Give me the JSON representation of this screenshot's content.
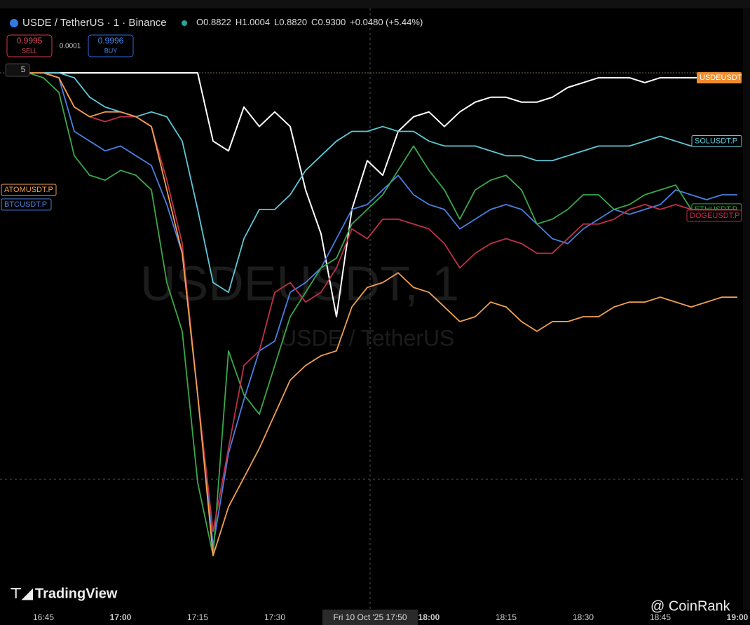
{
  "header": {
    "symbol": "USDE / TetherUS · 1 · Binance",
    "open_label": "O",
    "open": "0.8822",
    "high_label": "H",
    "high": "1.0004",
    "low_label": "L",
    "low": "0.8820",
    "close_label": "C",
    "close": "0.9300",
    "change": "+0.0480 (+5.44%)"
  },
  "trade": {
    "sell_price": "0.9995",
    "sell": "SELL",
    "spread": "0.0001",
    "buy_price": "0.9996",
    "buy": "BUY",
    "indicator_count": "5"
  },
  "watermark": {
    "line1": "USDEUSDT, 1",
    "line2": "USDE / TetherUS"
  },
  "crosshair_label": "Fri 10 Oct '25   17:50",
  "branding": {
    "logo": "TradingView",
    "credit": "@ CoinRank"
  },
  "chart_data": {
    "type": "line",
    "categories": [
      null,
      null,
      "16:45",
      null,
      null,
      null,
      null,
      "17:00",
      null,
      null,
      null,
      null,
      "17:15",
      null,
      null,
      null,
      null,
      "17:30",
      null,
      null,
      null,
      null,
      null,
      null,
      null,
      null,
      null,
      "18:00",
      null,
      null,
      null,
      null,
      "18:15",
      null,
      null,
      null,
      null,
      "18:30",
      null,
      null,
      null,
      null,
      "18:45",
      null,
      null,
      null,
      null,
      "19:00"
    ],
    "ylim": [
      0,
      100
    ],
    "series": [
      {
        "name": "USDEUSDT",
        "color": "#ffffff",
        "values": [
          100,
          100,
          100,
          100,
          100,
          100,
          100,
          100,
          100,
          100,
          100,
          100,
          100,
          86,
          84,
          93,
          89,
          92,
          89,
          76,
          67,
          50,
          72,
          82,
          79,
          88,
          91,
          92,
          89,
          92,
          94,
          95,
          95,
          94,
          94,
          95,
          97,
          98,
          99,
          99,
          99,
          98,
          99,
          99,
          99,
          99,
          99,
          99
        ]
      },
      {
        "name": "SOLUSDT.P",
        "color": "#5fc8d8",
        "values": [
          100,
          100,
          100,
          100,
          99,
          95,
          93,
          92,
          91,
          92,
          91,
          86,
          72,
          57,
          55,
          66,
          72,
          72,
          75,
          80,
          83,
          86,
          88,
          88,
          89,
          88,
          88,
          86,
          85,
          85,
          85,
          84,
          83,
          83,
          82,
          82,
          83,
          84,
          85,
          85,
          85,
          86,
          87,
          86,
          85,
          86,
          86,
          86
        ]
      },
      {
        "name": "BTCUSDT.P",
        "color": "#4a7fe0",
        "values": [
          100,
          100,
          100,
          99,
          88,
          86,
          84,
          85,
          83,
          81,
          73,
          63,
          34,
          3,
          22,
          33,
          43,
          45,
          55,
          57,
          60,
          66,
          72,
          73,
          76,
          79,
          75,
          73,
          72,
          68,
          70,
          72,
          73,
          72,
          69,
          66,
          65,
          68,
          70,
          72,
          71,
          72,
          73,
          76,
          75,
          74,
          75,
          75
        ]
      },
      {
        "name": "ETHUSDT.P",
        "color": "#3aa84a",
        "values": [
          100,
          100,
          99,
          96,
          83,
          79,
          78,
          80,
          79,
          76,
          57,
          47,
          16,
          1,
          43,
          34,
          30,
          40,
          50,
          55,
          60,
          62,
          69,
          72,
          75,
          80,
          85,
          80,
          76,
          70,
          76,
          78,
          79,
          76,
          69,
          70,
          72,
          75,
          75,
          72,
          73,
          75,
          76,
          77,
          72,
          70,
          72,
          72
        ]
      },
      {
        "name": "DOGEUSDT.P",
        "color": "#c0304a",
        "values": [
          100,
          100,
          100,
          99,
          93,
          91,
          90,
          91,
          91,
          89,
          78,
          65,
          34,
          6,
          23,
          40,
          43,
          55,
          57,
          53,
          55,
          60,
          68,
          66,
          70,
          70,
          69,
          68,
          65,
          60,
          63,
          65,
          66,
          65,
          63,
          63,
          66,
          69,
          69,
          70,
          72,
          73,
          72,
          73,
          72,
          72,
          72,
          72
        ]
      },
      {
        "name": "ATOMUSDT.P",
        "color": "#f0a050",
        "values": [
          100,
          100,
          100,
          99,
          93,
          91,
          92,
          92,
          91,
          89,
          76,
          63,
          34,
          1,
          11,
          17,
          23,
          30,
          37,
          40,
          42,
          43,
          52,
          56,
          57,
          59,
          56,
          55,
          52,
          49,
          50,
          53,
          52,
          49,
          47,
          49,
          49,
          50,
          50,
          52,
          53,
          53,
          54,
          53,
          52,
          53,
          54,
          54
        ]
      }
    ]
  }
}
